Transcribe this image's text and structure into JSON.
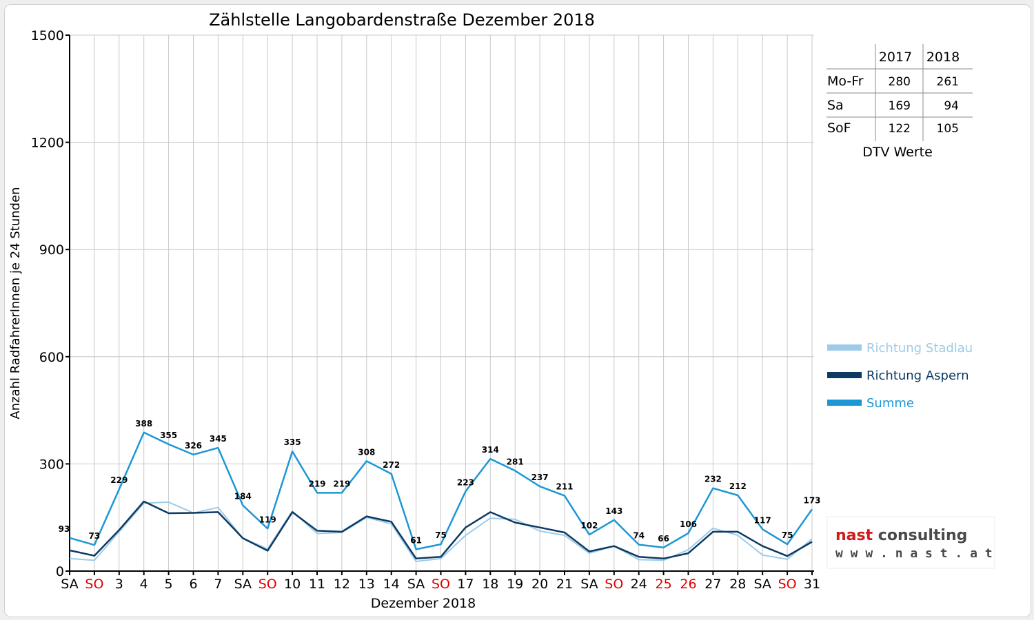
{
  "chart_data": {
    "type": "line",
    "title": "Zählstelle Langobardenstraße Dezember 2018",
    "xlabel": "Dezember 2018",
    "ylabel": "Anzahl RadfahrerInnen je 24 Stunden",
    "ylim": [
      0,
      1500
    ],
    "yticks": [
      0,
      300,
      600,
      900,
      1200,
      1500
    ],
    "grid": true,
    "legend_position": "right",
    "categories": [
      "SA",
      "SO",
      "3",
      "4",
      "5",
      "6",
      "7",
      "SA",
      "SO",
      "10",
      "11",
      "12",
      "13",
      "14",
      "SA",
      "SO",
      "17",
      "18",
      "19",
      "20",
      "21",
      "SA",
      "SO",
      "24",
      "25",
      "26",
      "27",
      "28",
      "SA",
      "SO",
      "31"
    ],
    "category_colors": [
      "#000000",
      "#e00000",
      "#000000",
      "#000000",
      "#000000",
      "#000000",
      "#000000",
      "#000000",
      "#e00000",
      "#000000",
      "#000000",
      "#000000",
      "#000000",
      "#000000",
      "#000000",
      "#e00000",
      "#000000",
      "#000000",
      "#000000",
      "#000000",
      "#000000",
      "#000000",
      "#e00000",
      "#000000",
      "#e00000",
      "#e00000",
      "#000000",
      "#000000",
      "#000000",
      "#e00000",
      "#000000"
    ],
    "series": [
      {
        "name": "Richtung Stadlau",
        "color": "#9ccbe8",
        "values": [
          35,
          30,
          110,
          190,
          193,
          163,
          178,
          92,
          62,
          168,
          105,
          108,
          150,
          132,
          27,
          35,
          100,
          148,
          145,
          112,
          100,
          50,
          70,
          32,
          30,
          60,
          120,
          100,
          45,
          33,
          90
        ]
      },
      {
        "name": "Richtung Aspern",
        "color": "#0c3a63",
        "values": [
          58,
          43,
          115,
          195,
          162,
          163,
          165,
          92,
          57,
          165,
          113,
          110,
          153,
          138,
          35,
          40,
          122,
          165,
          136,
          122,
          108,
          55,
          70,
          40,
          35,
          50,
          110,
          110,
          70,
          42,
          82
        ]
      },
      {
        "name": "Summe",
        "color": "#1c97d6",
        "values": [
          93,
          73,
          229,
          388,
          355,
          326,
          345,
          184,
          119,
          335,
          219,
          219,
          308,
          272,
          61,
          75,
          223,
          314,
          281,
          237,
          211,
          102,
          143,
          74,
          66,
          106,
          232,
          212,
          117,
          75,
          173
        ]
      }
    ],
    "data_labels": [
      "93",
      "73",
      "229",
      "388",
      "355",
      "326",
      "345",
      "184",
      "119",
      "335",
      "219",
      "219",
      "308",
      "272",
      "61",
      "75",
      "223",
      "314",
      "281",
      "237",
      "211",
      "102",
      "143",
      "74",
      "66",
      "106",
      "232",
      "212",
      "117",
      "75",
      "173"
    ]
  },
  "dtv_table": {
    "columns": [
      "2017",
      "2018"
    ],
    "rows": [
      {
        "label": "Mo-Fr",
        "values": [
          "280",
          "261"
        ]
      },
      {
        "label": "Sa",
        "values": [
          "169",
          "94"
        ]
      },
      {
        "label": "SoF",
        "values": [
          "122",
          "105"
        ]
      }
    ],
    "caption": "DTV Werte"
  },
  "logo": {
    "name_part1": "nast",
    "name_part2": " consulting",
    "url": "w w w . n a s t . a t",
    "color_part1": "#d11a1a",
    "color_part2": "#4a4a4a"
  }
}
